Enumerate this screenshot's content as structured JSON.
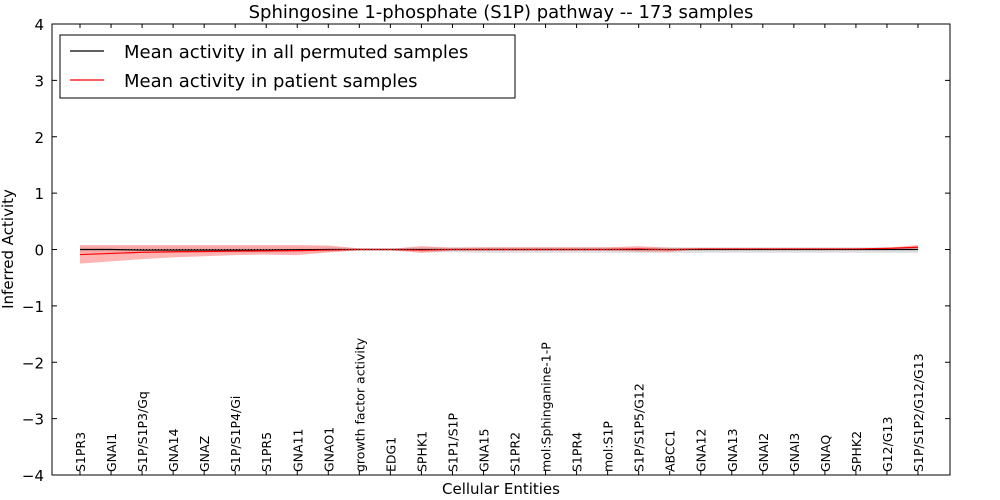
{
  "chart_data": {
    "type": "line",
    "title": "Sphingosine 1-phosphate (S1P) pathway -- 173 samples",
    "xlabel": "Cellular Entities",
    "ylabel": "Inferred Activity",
    "ylim": [
      -4,
      4
    ],
    "yticks": [
      -4,
      -3,
      -2,
      -1,
      0,
      1,
      2,
      3,
      4
    ],
    "ytick_labels": [
      "−4",
      "−3",
      "−2",
      "−1",
      "0",
      "1",
      "2",
      "3",
      "4"
    ],
    "legend_position": "top-left",
    "categories": [
      "S1PR3",
      "GNAI1",
      "S1P/S1P3/Gq",
      "GNA14",
      "GNAZ",
      "S1P/S1P4/Gi",
      "S1PR5",
      "GNA11",
      "GNAO1",
      "growth factor activity",
      "EDG1",
      "SPHK1",
      "S1P1/S1P",
      "GNA15",
      "S1PR2",
      "mol:Sphinganine-1-P",
      "S1PR4",
      "mol:S1P",
      "S1P/S1P5/G12",
      "ABCC1",
      "GNA12",
      "GNA13",
      "GNAI2",
      "GNAI3",
      "GNAQ",
      "SPHK2",
      "G12/G13",
      "S1P/S1P2/G12/G13"
    ],
    "series": [
      {
        "name": "Mean activity in all permuted samples",
        "color": "#000000",
        "band_color": "#cccccc",
        "values": [
          0,
          0,
          -0.01,
          -0.01,
          -0.01,
          -0.01,
          -0.01,
          -0.005,
          0,
          0,
          0,
          0,
          0,
          0,
          0,
          0,
          0,
          0,
          0,
          0,
          0,
          0,
          0,
          0,
          0,
          0,
          0,
          0
        ],
        "upper": [
          0.05,
          0.05,
          0.05,
          0.05,
          0.05,
          0.05,
          0.05,
          0.05,
          0.05,
          0.02,
          0.02,
          0.04,
          0.04,
          0.04,
          0.04,
          0.04,
          0.04,
          0.04,
          0.04,
          0.04,
          0.04,
          0.04,
          0.04,
          0.04,
          0.04,
          0.04,
          0.04,
          0.04
        ],
        "lower": [
          -0.05,
          -0.05,
          -0.06,
          -0.06,
          -0.06,
          -0.06,
          -0.06,
          -0.05,
          -0.05,
          -0.02,
          -0.02,
          -0.05,
          -0.05,
          -0.06,
          -0.06,
          -0.06,
          -0.06,
          -0.06,
          -0.06,
          -0.06,
          -0.06,
          -0.06,
          -0.06,
          -0.06,
          -0.06,
          -0.06,
          -0.06,
          -0.06
        ]
      },
      {
        "name": "Mean activity in patient samples",
        "color": "#ff0000",
        "band_color": "#ff8080",
        "values": [
          -0.09,
          -0.07,
          -0.05,
          -0.04,
          -0.035,
          -0.03,
          -0.025,
          -0.02,
          -0.01,
          0,
          0,
          -0.01,
          0,
          0,
          0,
          0,
          0,
          0,
          0.01,
          -0.005,
          0.01,
          0.01,
          0.01,
          0.01,
          0.01,
          0.01,
          0.02,
          0.04
        ],
        "upper": [
          0.08,
          0.08,
          0.08,
          0.08,
          0.08,
          0.08,
          0.08,
          0.08,
          0.07,
          0.02,
          0.01,
          0.06,
          0.03,
          0.04,
          0.04,
          0.04,
          0.04,
          0.04,
          0.06,
          0.03,
          0.02,
          0.02,
          0.02,
          0.02,
          0.02,
          0.02,
          0.03,
          0.08
        ],
        "lower": [
          -0.25,
          -0.21,
          -0.17,
          -0.14,
          -0.12,
          -0.1,
          -0.09,
          -0.1,
          -0.05,
          -0.01,
          -0.01,
          -0.06,
          -0.02,
          -0.02,
          -0.02,
          -0.02,
          -0.02,
          -0.02,
          -0.04,
          -0.04,
          0,
          0,
          0,
          0,
          0,
          0,
          0,
          0.01
        ]
      }
    ]
  }
}
